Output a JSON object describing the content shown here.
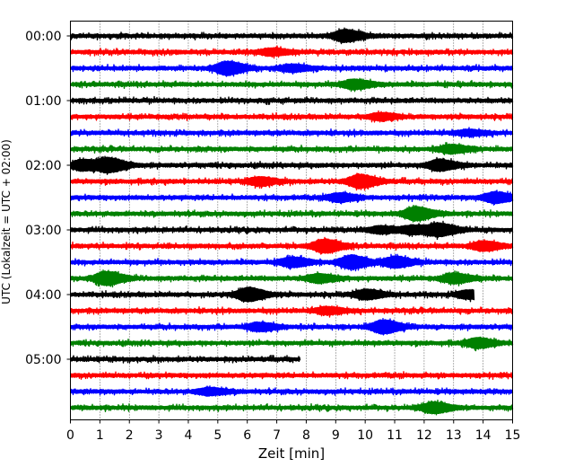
{
  "chart_data": {
    "type": "line",
    "title": "",
    "xlabel": "Zeit  [min]",
    "ylabel": "UTC (Lokalzeit = UTC + 02:00)",
    "xlim": [
      0,
      15
    ],
    "x_ticks": [
      "0",
      "1",
      "2",
      "3",
      "4",
      "5",
      "6",
      "7",
      "8",
      "9",
      "10",
      "11",
      "12",
      "13",
      "14",
      "15"
    ],
    "y_ticks": [
      "00:00",
      "01:00",
      "02:00",
      "03:00",
      "04:00",
      "05:00"
    ],
    "grid": "vertical dotted",
    "trace_colors": [
      "#000000",
      "#ff0000",
      "#0000ff",
      "#008000"
    ],
    "traces": [
      {
        "start": "00:00",
        "color": "#000000",
        "x_end": 15,
        "events": [
          [
            9.3,
            0.9
          ]
        ]
      },
      {
        "start": "00:15",
        "color": "#ff0000",
        "x_end": 15,
        "events": [
          [
            6.8,
            0.5
          ]
        ]
      },
      {
        "start": "00:30",
        "color": "#0000ff",
        "x_end": 15,
        "events": [
          [
            5.3,
            1.0
          ],
          [
            7.5,
            0.5
          ]
        ]
      },
      {
        "start": "00:45",
        "color": "#008000",
        "x_end": 15,
        "events": [
          [
            9.6,
            0.7
          ]
        ]
      },
      {
        "start": "01:00",
        "color": "#000000",
        "x_end": 15,
        "events": []
      },
      {
        "start": "01:15",
        "color": "#ff0000",
        "x_end": 15,
        "events": [
          [
            10.5,
            0.5
          ]
        ]
      },
      {
        "start": "01:30",
        "color": "#0000ff",
        "x_end": 15,
        "events": [
          [
            13.5,
            0.4
          ]
        ]
      },
      {
        "start": "01:45",
        "color": "#008000",
        "x_end": 15,
        "events": [
          [
            12.9,
            0.6
          ]
        ]
      },
      {
        "start": "02:00",
        "color": "#000000",
        "x_end": 15,
        "events": [
          [
            1.3,
            1.0
          ],
          [
            12.5,
            0.8
          ],
          [
            0.4,
            0.8
          ]
        ]
      },
      {
        "start": "02:15",
        "color": "#ff0000",
        "x_end": 15,
        "events": [
          [
            9.8,
            1.0
          ],
          [
            6.4,
            0.6
          ]
        ]
      },
      {
        "start": "02:30",
        "color": "#0000ff",
        "x_end": 15,
        "events": [
          [
            14.4,
            0.8
          ],
          [
            9.1,
            0.6
          ]
        ]
      },
      {
        "start": "02:45",
        "color": "#008000",
        "x_end": 15,
        "events": [
          [
            11.7,
            1.0
          ]
        ]
      },
      {
        "start": "03:00",
        "color": "#000000",
        "x_end": 15,
        "events": [
          [
            12.5,
            0.9
          ],
          [
            11.6,
            0.6
          ],
          [
            10.5,
            0.5
          ]
        ]
      },
      {
        "start": "03:15",
        "color": "#ff0000",
        "x_end": 15,
        "events": [
          [
            8.6,
            1.0
          ],
          [
            14.0,
            0.7
          ]
        ]
      },
      {
        "start": "03:30",
        "color": "#0000ff",
        "x_end": 15,
        "events": [
          [
            9.5,
            1.0
          ],
          [
            11.0,
            0.8
          ],
          [
            7.5,
            0.7
          ]
        ]
      },
      {
        "start": "03:45",
        "color": "#008000",
        "x_end": 15,
        "events": [
          [
            1.2,
            1.0
          ],
          [
            13.0,
            0.7
          ],
          [
            8.4,
            0.6
          ]
        ]
      },
      {
        "start": "04:00",
        "color": "#000000",
        "x_end": 13.7,
        "events": [
          [
            6.0,
            1.0
          ],
          [
            10.0,
            0.7
          ],
          [
            13.5,
            0.6
          ]
        ]
      },
      {
        "start": "04:15",
        "color": "#ff0000",
        "x_end": 15,
        "events": [
          [
            8.7,
            0.5
          ]
        ]
      },
      {
        "start": "04:30",
        "color": "#0000ff",
        "x_end": 15,
        "events": [
          [
            10.6,
            1.0
          ],
          [
            6.4,
            0.6
          ]
        ]
      },
      {
        "start": "04:45",
        "color": "#008000",
        "x_end": 15,
        "events": [
          [
            13.8,
            0.7
          ]
        ]
      },
      {
        "start": "05:00",
        "color": "#000000",
        "x_end": 7.8,
        "events": []
      },
      {
        "start": "05:15",
        "color": "#ff0000",
        "x_end": 15,
        "events": []
      },
      {
        "start": "05:30",
        "color": "#0000ff",
        "x_end": 15,
        "events": [
          [
            4.7,
            0.5
          ]
        ]
      },
      {
        "start": "05:45",
        "color": "#008000",
        "x_end": 15,
        "events": [
          [
            12.3,
            0.8
          ]
        ]
      }
    ]
  }
}
